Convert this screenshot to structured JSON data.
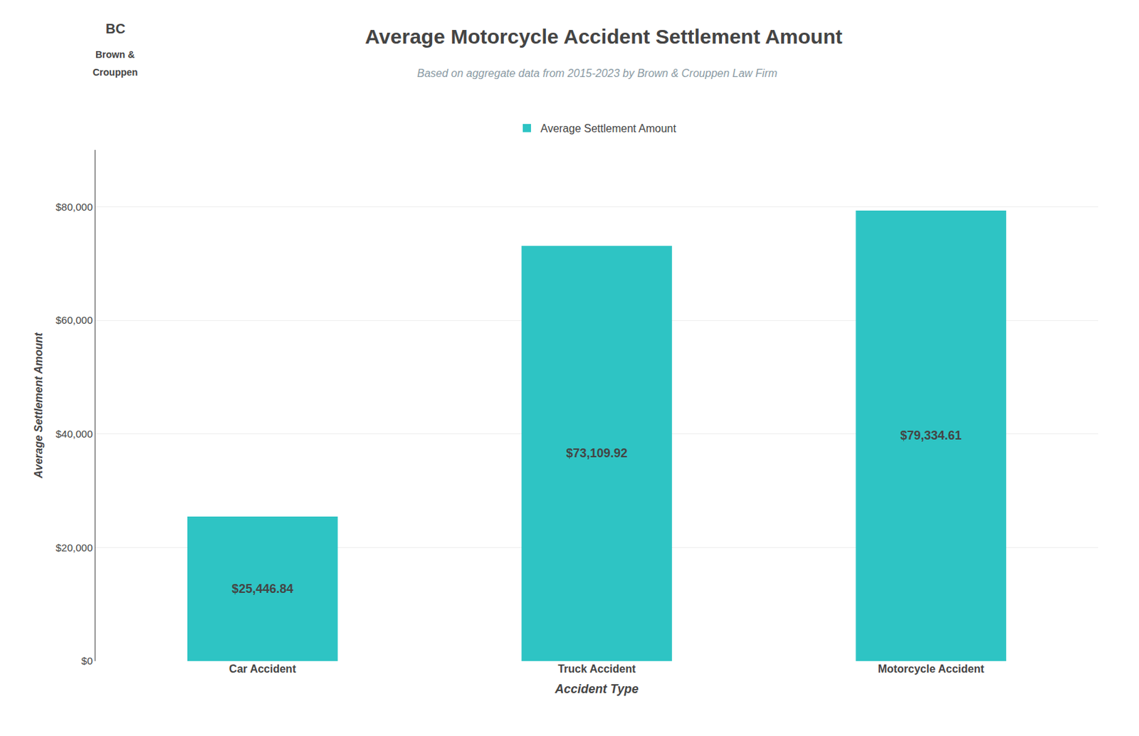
{
  "chart_data": {
    "type": "bar",
    "title": "Average Motorcycle Accident Settlement Amount",
    "subtitle": "Based on aggregate data from 2015-2023 by Brown & Crouppen Law Firm",
    "annotations": [
      "BC",
      "Brown &",
      "Crouppen"
    ],
    "xlabel": "Accident Type",
    "ylabel": "Average Settlement Amount",
    "categories": [
      "Car Accident",
      "Truck Accident",
      "Motorcycle Accident"
    ],
    "series": [
      {
        "name": "Average Settlement Amount",
        "color": "#2EC4C4",
        "values": [
          25446.84,
          73109.92,
          79334.61
        ],
        "value_labels": [
          "$25,446.84",
          "$73,109.92",
          "$79,334.61"
        ]
      }
    ],
    "ylim": [
      0,
      90000
    ],
    "yticks": [
      {
        "value": 0,
        "label": "$0"
      },
      {
        "value": 20000,
        "label": "$20,000"
      },
      {
        "value": 40000,
        "label": "$40,000"
      },
      {
        "value": 60000,
        "label": "$60,000"
      },
      {
        "value": 80000,
        "label": "$80,000"
      }
    ],
    "grid": true,
    "legend": "top",
    "data_labels": true
  }
}
